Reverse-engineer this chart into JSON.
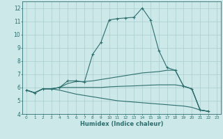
{
  "xlabel": "Humidex (Indice chaleur)",
  "background_color": "#cce8e8",
  "grid_color": "#aacece",
  "line_color": "#2d6e6e",
  "xlim": [
    -0.5,
    23.5
  ],
  "ylim": [
    4.0,
    12.5
  ],
  "xticks": [
    0,
    1,
    2,
    3,
    4,
    5,
    6,
    7,
    8,
    9,
    10,
    11,
    12,
    13,
    14,
    15,
    16,
    17,
    18,
    19,
    20,
    21,
    22,
    23
  ],
  "yticks": [
    4,
    5,
    6,
    7,
    8,
    9,
    10,
    11,
    12
  ],
  "line1_x": [
    0,
    1,
    2,
    3,
    4,
    5,
    6,
    7,
    8,
    9,
    10,
    11,
    12,
    13,
    14,
    15,
    16,
    17,
    18,
    19,
    20,
    21,
    22
  ],
  "line1_y": [
    5.8,
    5.6,
    5.9,
    5.9,
    6.0,
    6.5,
    6.5,
    6.4,
    8.5,
    9.4,
    11.1,
    11.2,
    11.25,
    11.3,
    12.0,
    11.1,
    8.8,
    7.5,
    7.3,
    6.1,
    5.9,
    4.3,
    4.2
  ],
  "line2_x": [
    0,
    1,
    2,
    3,
    4,
    5,
    6,
    7,
    8,
    9,
    10,
    11,
    12,
    13,
    14,
    15,
    16,
    17,
    18,
    19,
    20,
    21,
    22
  ],
  "line2_y": [
    5.8,
    5.6,
    5.9,
    5.9,
    6.0,
    6.3,
    6.45,
    6.45,
    6.5,
    6.6,
    6.7,
    6.8,
    6.9,
    7.0,
    7.1,
    7.15,
    7.2,
    7.3,
    7.3,
    6.1,
    5.9,
    4.3,
    4.2
  ],
  "line3_x": [
    0,
    1,
    2,
    3,
    4,
    5,
    6,
    7,
    8,
    9,
    10,
    11,
    12,
    13,
    14,
    15,
    16,
    17,
    18,
    19,
    20,
    21,
    22
  ],
  "line3_y": [
    5.8,
    5.6,
    5.9,
    5.9,
    6.0,
    6.0,
    6.0,
    6.0,
    6.0,
    6.0,
    6.05,
    6.08,
    6.1,
    6.12,
    6.15,
    6.18,
    6.2,
    6.2,
    6.2,
    6.1,
    5.9,
    4.3,
    4.2
  ],
  "line4_x": [
    0,
    1,
    2,
    3,
    4,
    5,
    6,
    7,
    8,
    9,
    10,
    11,
    12,
    13,
    14,
    15,
    16,
    17,
    18,
    19,
    20,
    21,
    22
  ],
  "line4_y": [
    5.8,
    5.6,
    5.9,
    5.9,
    5.8,
    5.65,
    5.5,
    5.4,
    5.3,
    5.2,
    5.1,
    5.0,
    4.95,
    4.9,
    4.85,
    4.8,
    4.75,
    4.7,
    4.65,
    4.6,
    4.5,
    4.3,
    4.2
  ]
}
